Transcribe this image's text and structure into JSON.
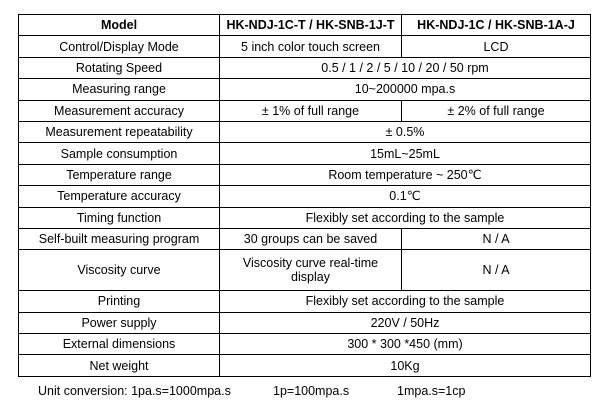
{
  "table": {
    "header": {
      "model": "Model",
      "col_a": "HK-NDJ-1C-T / HK-SNB-1J-T",
      "col_b": "HK-NDJ-1C / HK-SNB-1A-J"
    },
    "rows": [
      {
        "label": "Control/Display Mode",
        "a": "5 inch color touch screen",
        "b": "LCD"
      },
      {
        "label": "Rotating Speed",
        "value": "0.5 / 1 / 2 / 5 / 10 / 20 / 50 rpm"
      },
      {
        "label": "Measuring range",
        "value": "10~200000 mpa.s"
      },
      {
        "label": "Measurement accuracy",
        "a": "± 1% of full range",
        "b": "± 2% of full range"
      },
      {
        "label": "Measurement repeatability",
        "value": "± 0.5%"
      },
      {
        "label": "Sample consumption",
        "value": "15mL~25mL"
      },
      {
        "label": "Temperature range",
        "value": "Room temperature ~ 250℃"
      },
      {
        "label": "Temperature accuracy",
        "value": "0.1℃"
      },
      {
        "label": "Timing function",
        "value": "Flexibly set according to the sample"
      },
      {
        "label": "Self-built measuring program",
        "a": "30 groups can be saved",
        "b": "N / A"
      },
      {
        "label": "Viscosity curve",
        "a": "Viscosity curve real-time display",
        "b": "N / A"
      },
      {
        "label": "Printing",
        "value": "Flexibly set according to the sample"
      },
      {
        "label": "Power supply",
        "value": "220V / 50Hz"
      },
      {
        "label": "External dimensions",
        "value": "300 * 300 *450 (mm)"
      },
      {
        "label": "Net weight",
        "value": "10Kg"
      }
    ]
  },
  "footnote": {
    "unit1": "Unit conversion: 1pa.s=1000mpa.s",
    "unit2": "1p=100mpa.s",
    "unit3": "1mpa.s=1cp"
  }
}
